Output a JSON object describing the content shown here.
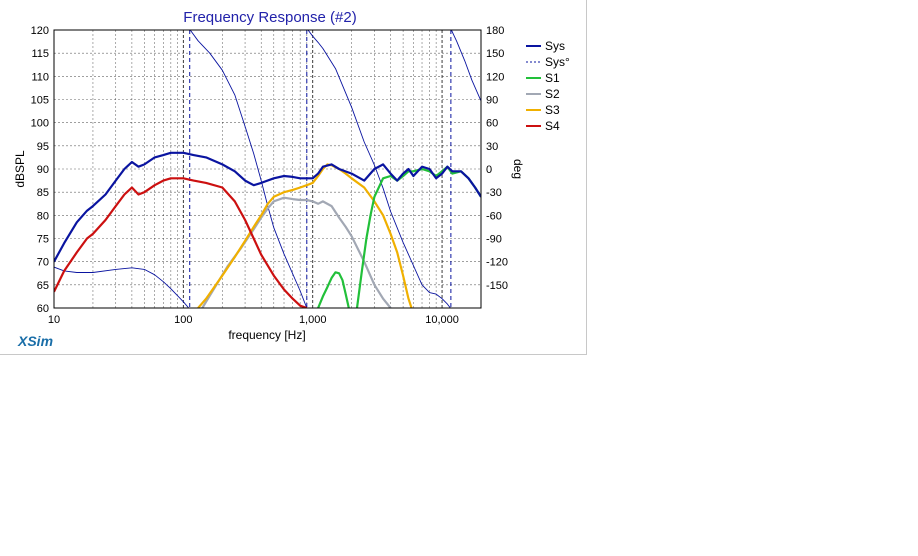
{
  "brand": "XSim",
  "chart_data": {
    "type": "line",
    "title": "Frequency Response (#2)",
    "xlabel": "frequency [Hz]",
    "ylabel": "dBSPL",
    "y2label": "deg",
    "xscale": "log",
    "xlim": [
      10,
      20000
    ],
    "ylim": [
      60,
      120
    ],
    "y2lim": [
      -180,
      180
    ],
    "x_ticks": [
      10,
      100,
      1000,
      10000
    ],
    "x_tick_labels": [
      "10",
      "100",
      "1,000",
      "10,000"
    ],
    "y_ticks": [
      60,
      65,
      70,
      75,
      80,
      85,
      90,
      95,
      100,
      105,
      110,
      115,
      120
    ],
    "y2_ticks": [
      -150,
      -120,
      -90,
      -60,
      -30,
      0,
      30,
      60,
      90,
      120,
      150,
      180
    ],
    "grid": true,
    "legend_position": "right",
    "colors": {
      "Sys": "#0a14a0",
      "Sys°": "#0a14a0",
      "S1": "#22c03a",
      "S2": "#a2a8b4",
      "S3": "#f0b000",
      "S4": "#cc1010"
    },
    "series": [
      {
        "name": "Sys",
        "axis": "left",
        "x": [
          10,
          12,
          15,
          18,
          20,
          25,
          30,
          35,
          40,
          45,
          50,
          60,
          70,
          80,
          100,
          120,
          150,
          200,
          250,
          300,
          350,
          400,
          500,
          600,
          700,
          800,
          1000,
          1100,
          1200,
          1400,
          1600,
          2000,
          2500,
          3000,
          3500,
          4000,
          4500,
          5000,
          5500,
          6000,
          7000,
          8000,
          9000,
          10000,
          11000,
          12000,
          14000,
          16000,
          18000,
          20000
        ],
        "y": [
          70,
          74,
          78.5,
          81,
          82,
          84.5,
          87.5,
          90,
          91.5,
          90.5,
          91,
          92.5,
          93,
          93.5,
          93.5,
          93,
          92.5,
          91,
          89.5,
          87.5,
          86.5,
          87,
          88,
          88.5,
          88.3,
          88,
          88,
          89,
          90.5,
          91,
          90,
          89,
          87.5,
          90,
          91,
          89,
          87.5,
          89,
          90,
          88.5,
          90.5,
          90,
          88,
          89,
          90.5,
          89.5,
          89.5,
          88,
          86,
          84
        ]
      },
      {
        "name": "Sys°",
        "axis": "right",
        "segments": [
          {
            "x": [
              10,
              12,
              15,
              20,
              30,
              40,
              50,
              60,
              70,
              80,
              90,
              100,
              110
            ],
            "y": [
              -127,
              -132,
              -134,
              -134,
              -130,
              -128,
              -130,
              -137,
              -146,
              -155,
              -164,
              -172,
              -180
            ]
          },
          {
            "x": [
              113,
              130,
              160,
              200,
              250,
              300,
              350,
              400,
              450,
              500,
              600,
              800,
              900
            ],
            "y": [
              180,
              166,
              150,
              128,
              96,
              55,
              20,
              -15,
              -48,
              -76,
              -110,
              -158,
              -180
            ]
          },
          {
            "x": [
              920,
              1000,
              1100,
              1200,
              1500,
              2000,
              2500,
              3000,
              3500,
              4000,
              5000,
              6000,
              7000,
              8000,
              9000,
              10000,
              11000,
              11600
            ],
            "y": [
              180,
              172,
              164,
              156,
              130,
              80,
              35,
              5,
              -25,
              -55,
              -95,
              -125,
              -150,
              -160,
              -162,
              -168,
              -175,
              -180
            ]
          },
          {
            "x": [
              11800,
              13000,
              15000,
              17000,
              20000
            ],
            "y": [
              180,
              165,
              140,
              115,
              88
            ]
          }
        ]
      },
      {
        "name": "S1",
        "axis": "left",
        "segments": [
          {
            "x": [
              1100,
              1200,
              1300,
              1400,
              1500,
              1600,
              1700,
              1800,
              1900
            ],
            "y": [
              60,
              62.5,
              64.5,
              66.5,
              67.7,
              67.5,
              66,
              63,
              60
            ]
          },
          {
            "x": [
              2200,
              2400,
              2600,
              2800,
              3000,
              3500,
              4000,
              4500,
              5000,
              5500,
              6000,
              7000,
              8000,
              9000,
              10000,
              11000,
              12000,
              14000,
              16000,
              18000,
              20000
            ],
            "y": [
              60,
              68,
              75,
              80,
              84,
              88,
              88.5,
              87.5,
              88.5,
              89.5,
              89.5,
              90,
              89.5,
              88.5,
              89.5,
              90.5,
              89,
              89.5,
              88,
              86,
              84
            ]
          }
        ]
      },
      {
        "name": "S2",
        "axis": "left",
        "x": [
          140,
          180,
          220,
          280,
          350,
          400,
          450,
          500,
          600,
          700,
          800,
          900,
          1000,
          1100,
          1200,
          1400,
          1600,
          1800,
          2000,
          2500,
          3000,
          3500,
          4000
        ],
        "y": [
          60,
          65,
          69,
          73,
          77,
          79.5,
          81.5,
          83,
          83.8,
          83.5,
          83.3,
          83.3,
          83,
          82.5,
          83,
          82,
          79.5,
          77.5,
          75.5,
          70,
          65,
          62,
          60
        ]
      },
      {
        "name": "S3",
        "axis": "left",
        "x": [
          130,
          150,
          200,
          250,
          300,
          350,
          400,
          450,
          500,
          600,
          700,
          800,
          900,
          1000,
          1100,
          1200,
          1300,
          1400,
          1600,
          1800,
          2000,
          2500,
          3000,
          3500,
          4000,
          4500,
          5000,
          5500,
          5800
        ],
        "y": [
          60,
          62,
          67,
          71,
          74.5,
          77.5,
          80,
          82.5,
          84,
          85,
          85.5,
          86,
          86.5,
          87,
          88.5,
          90,
          91,
          90.8,
          90,
          89,
          88,
          86,
          83,
          80,
          76,
          72,
          67,
          62,
          60
        ]
      },
      {
        "name": "S4",
        "axis": "left",
        "x": [
          10,
          12,
          15,
          18,
          20,
          25,
          30,
          35,
          40,
          45,
          50,
          60,
          70,
          80,
          100,
          120,
          150,
          200,
          250,
          300,
          350,
          400,
          500,
          600,
          700,
          800,
          900
        ],
        "y": [
          63.5,
          68,
          72,
          75,
          76,
          79,
          82,
          84.5,
          86,
          84.5,
          85,
          86.5,
          87.5,
          88,
          88,
          87.5,
          87,
          86,
          83,
          79,
          75,
          71.5,
          67,
          64,
          62,
          60.5,
          60
        ]
      }
    ]
  }
}
